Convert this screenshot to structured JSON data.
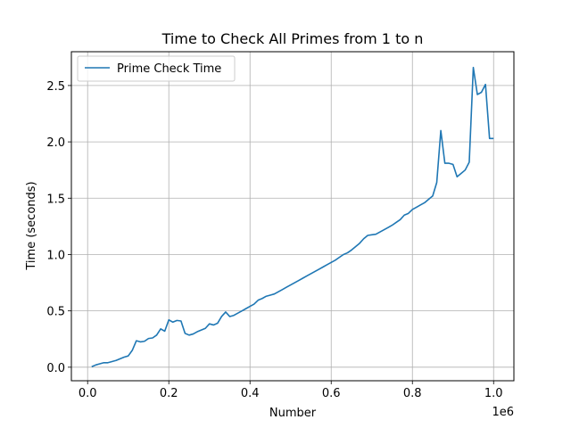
{
  "chart_data": {
    "type": "line",
    "title": "Time to Check All Primes from 1 to n",
    "xlabel": "Number",
    "ylabel": "Time (seconds)",
    "x_offset_label": "1e6",
    "xlim": [
      -40000,
      1050000
    ],
    "ylim": [
      -0.12,
      2.8
    ],
    "xticks": [
      0,
      200000,
      400000,
      600000,
      800000,
      1000000
    ],
    "xtick_labels": [
      "0.0",
      "0.2",
      "0.4",
      "0.6",
      "0.8",
      "1.0"
    ],
    "yticks": [
      0.0,
      0.5,
      1.0,
      1.5,
      2.0,
      2.5
    ],
    "ytick_labels": [
      "0.0",
      "0.5",
      "1.0",
      "1.5",
      "2.0",
      "2.5"
    ],
    "grid": true,
    "legend": {
      "position": "top-left",
      "entries": [
        "Prime Check Time"
      ]
    },
    "series": [
      {
        "name": "Prime Check Time",
        "color": "#1f77b4",
        "x": [
          10000,
          20000,
          30000,
          40000,
          50000,
          60000,
          70000,
          80000,
          90000,
          100000,
          110000,
          120000,
          130000,
          140000,
          150000,
          160000,
          170000,
          180000,
          190000,
          200000,
          210000,
          220000,
          230000,
          240000,
          250000,
          260000,
          270000,
          280000,
          290000,
          300000,
          310000,
          320000,
          330000,
          340000,
          350000,
          360000,
          370000,
          380000,
          390000,
          400000,
          410000,
          420000,
          430000,
          440000,
          450000,
          460000,
          470000,
          480000,
          490000,
          500000,
          510000,
          520000,
          530000,
          540000,
          550000,
          560000,
          570000,
          580000,
          590000,
          600000,
          610000,
          620000,
          630000,
          640000,
          650000,
          660000,
          670000,
          680000,
          690000,
          700000,
          710000,
          720000,
          730000,
          740000,
          750000,
          760000,
          770000,
          780000,
          790000,
          800000,
          810000,
          820000,
          830000,
          840000,
          850000,
          860000,
          870000,
          880000,
          890000,
          900000,
          910000,
          920000,
          930000,
          940000,
          950000,
          960000,
          970000,
          980000,
          990000,
          1000000
        ],
        "values": [
          0.005,
          0.02,
          0.03,
          0.04,
          0.04,
          0.05,
          0.06,
          0.075,
          0.09,
          0.1,
          0.15,
          0.235,
          0.225,
          0.23,
          0.255,
          0.26,
          0.285,
          0.34,
          0.32,
          0.42,
          0.4,
          0.415,
          0.41,
          0.3,
          0.285,
          0.295,
          0.315,
          0.33,
          0.345,
          0.385,
          0.375,
          0.39,
          0.45,
          0.49,
          0.45,
          0.46,
          0.48,
          0.5,
          0.52,
          0.54,
          0.56,
          0.595,
          0.61,
          0.63,
          0.64,
          0.65,
          0.67,
          0.69,
          0.71,
          0.73,
          0.75,
          0.77,
          0.79,
          0.81,
          0.83,
          0.85,
          0.87,
          0.89,
          0.91,
          0.93,
          0.95,
          0.975,
          1.0,
          1.015,
          1.04,
          1.07,
          1.1,
          1.14,
          1.17,
          1.175,
          1.18,
          1.2,
          1.22,
          1.24,
          1.26,
          1.285,
          1.31,
          1.35,
          1.365,
          1.4,
          1.42,
          1.44,
          1.46,
          1.49,
          1.52,
          1.64,
          2.1,
          1.81,
          1.81,
          1.8,
          1.69,
          1.72,
          1.75,
          1.82,
          2.66,
          2.42,
          2.44,
          2.51,
          2.03,
          2.03
        ]
      }
    ]
  }
}
